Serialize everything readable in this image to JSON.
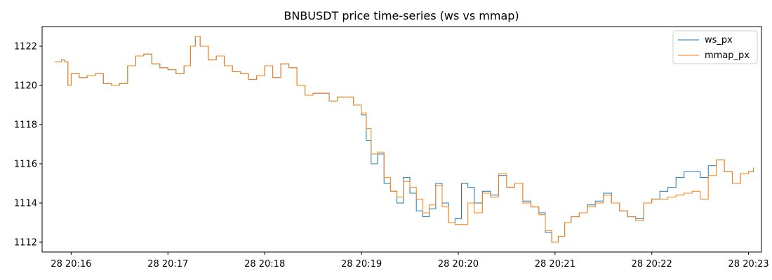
{
  "chart_data": {
    "type": "line",
    "title": "BNBUSDT price time-series (ws vs mmap)",
    "xlabel": "",
    "ylabel": "",
    "xlim": [
      "2024-??-28 20:15:42",
      "2024-??-28 20:23:08"
    ],
    "x_ticks": [
      "28 20:16",
      "28 20:17",
      "28 20:18",
      "28 20:19",
      "28 20:20",
      "28 20:21",
      "28 20:22",
      "28 20:23"
    ],
    "y_ticks": [
      1112,
      1114,
      1116,
      1118,
      1120,
      1122
    ],
    "ylim": [
      1111.5,
      1123.0
    ],
    "grid": false,
    "legend_position": "top-right",
    "series": [
      {
        "name": "ws_px",
        "color": "#1f77b4",
        "points": [
          [
            "20:15:50",
            1121.2
          ],
          [
            "20:15:54",
            1121.3
          ],
          [
            "20:15:56",
            1121.2
          ],
          [
            "20:15:58",
            1120.0
          ],
          [
            "20:16:00",
            1120.6
          ],
          [
            "20:16:05",
            1120.4
          ],
          [
            "20:16:10",
            1120.5
          ],
          [
            "20:16:15",
            1120.6
          ],
          [
            "20:16:20",
            1120.1
          ],
          [
            "20:16:25",
            1120.0
          ],
          [
            "20:16:30",
            1120.1
          ],
          [
            "20:16:35",
            1121.0
          ],
          [
            "20:16:40",
            1121.5
          ],
          [
            "20:16:45",
            1121.6
          ],
          [
            "20:16:50",
            1121.1
          ],
          [
            "20:16:55",
            1120.9
          ],
          [
            "20:17:00",
            1120.8
          ],
          [
            "20:17:05",
            1120.6
          ],
          [
            "20:17:10",
            1121.0
          ],
          [
            "20:17:14",
            1122.0
          ],
          [
            "20:17:17",
            1122.5
          ],
          [
            "20:17:20",
            1122.0
          ],
          [
            "20:17:25",
            1121.3
          ],
          [
            "20:17:30",
            1121.5
          ],
          [
            "20:17:35",
            1121.0
          ],
          [
            "20:17:40",
            1120.7
          ],
          [
            "20:17:45",
            1120.6
          ],
          [
            "20:17:50",
            1120.3
          ],
          [
            "20:17:55",
            1120.5
          ],
          [
            "20:18:00",
            1121.0
          ],
          [
            "20:18:05",
            1120.4
          ],
          [
            "20:18:10",
            1121.1
          ],
          [
            "20:18:15",
            1120.9
          ],
          [
            "20:18:20",
            1120.0
          ],
          [
            "20:18:25",
            1119.5
          ],
          [
            "20:18:30",
            1119.6
          ],
          [
            "20:18:35",
            1119.6
          ],
          [
            "20:18:40",
            1119.2
          ],
          [
            "20:18:45",
            1119.4
          ],
          [
            "20:18:50",
            1119.4
          ],
          [
            "20:18:55",
            1119.0
          ],
          [
            "20:19:00",
            1118.5
          ],
          [
            "20:19:03",
            1117.2
          ],
          [
            "20:19:06",
            1116.0
          ],
          [
            "20:19:10",
            1116.5
          ],
          [
            "20:19:14",
            1115.0
          ],
          [
            "20:19:18",
            1114.6
          ],
          [
            "20:19:22",
            1114.0
          ],
          [
            "20:19:26",
            1115.3
          ],
          [
            "20:19:30",
            1114.5
          ],
          [
            "20:19:34",
            1113.6
          ],
          [
            "20:19:38",
            1113.3
          ],
          [
            "20:19:42",
            1113.7
          ],
          [
            "20:19:46",
            1115.0
          ],
          [
            "20:19:50",
            1114.0
          ],
          [
            "20:19:54",
            1113.0
          ],
          [
            "20:19:58",
            1113.2
          ],
          [
            "20:20:02",
            1115.0
          ],
          [
            "20:20:06",
            1114.8
          ],
          [
            "20:20:10",
            1114.0
          ],
          [
            "20:20:15",
            1114.6
          ],
          [
            "20:20:20",
            1114.4
          ],
          [
            "20:20:25",
            1115.4
          ],
          [
            "20:20:30",
            1114.8
          ],
          [
            "20:20:35",
            1115.0
          ],
          [
            "20:20:40",
            1114.1
          ],
          [
            "20:20:45",
            1113.8
          ],
          [
            "20:20:50",
            1113.5
          ],
          [
            "20:20:54",
            1112.5
          ],
          [
            "20:20:58",
            1112.0
          ],
          [
            "20:21:02",
            1112.3
          ],
          [
            "20:21:06",
            1113.0
          ],
          [
            "20:21:10",
            1113.3
          ],
          [
            "20:21:15",
            1113.5
          ],
          [
            "20:21:20",
            1113.9
          ],
          [
            "20:21:25",
            1114.1
          ],
          [
            "20:21:30",
            1114.5
          ],
          [
            "20:21:35",
            1114.0
          ],
          [
            "20:21:40",
            1113.6
          ],
          [
            "20:21:45",
            1113.3
          ],
          [
            "20:21:50",
            1113.2
          ],
          [
            "20:21:55",
            1114.0
          ],
          [
            "20:22:00",
            1114.2
          ],
          [
            "20:22:05",
            1114.6
          ],
          [
            "20:22:10",
            1114.8
          ],
          [
            "20:22:15",
            1115.3
          ],
          [
            "20:22:20",
            1115.6
          ],
          [
            "20:22:25",
            1115.6
          ],
          [
            "20:22:30",
            1115.3
          ],
          [
            "20:22:35",
            1115.9
          ],
          [
            "20:22:40",
            1116.2
          ],
          [
            "20:22:45",
            1115.6
          ],
          [
            "20:22:50",
            1115.0
          ],
          [
            "20:22:55",
            1115.5
          ],
          [
            "20:23:00",
            1115.6
          ],
          [
            "20:23:03",
            1115.8
          ]
        ]
      },
      {
        "name": "mmap_px",
        "color": "#ff7f0e",
        "points": [
          [
            "20:15:50",
            1121.2
          ],
          [
            "20:15:54",
            1121.3
          ],
          [
            "20:15:56",
            1121.2
          ],
          [
            "20:15:58",
            1120.0
          ],
          [
            "20:16:00",
            1120.6
          ],
          [
            "20:16:05",
            1120.4
          ],
          [
            "20:16:10",
            1120.5
          ],
          [
            "20:16:15",
            1120.6
          ],
          [
            "20:16:20",
            1120.1
          ],
          [
            "20:16:25",
            1120.0
          ],
          [
            "20:16:30",
            1120.1
          ],
          [
            "20:16:35",
            1121.0
          ],
          [
            "20:16:40",
            1121.5
          ],
          [
            "20:16:45",
            1121.6
          ],
          [
            "20:16:50",
            1121.1
          ],
          [
            "20:16:55",
            1120.9
          ],
          [
            "20:17:00",
            1120.8
          ],
          [
            "20:17:05",
            1120.6
          ],
          [
            "20:17:10",
            1121.0
          ],
          [
            "20:17:14",
            1122.0
          ],
          [
            "20:17:17",
            1122.5
          ],
          [
            "20:17:20",
            1122.0
          ],
          [
            "20:17:25",
            1121.3
          ],
          [
            "20:17:30",
            1121.5
          ],
          [
            "20:17:35",
            1121.0
          ],
          [
            "20:17:40",
            1120.7
          ],
          [
            "20:17:45",
            1120.6
          ],
          [
            "20:17:50",
            1120.3
          ],
          [
            "20:17:55",
            1120.5
          ],
          [
            "20:18:00",
            1121.0
          ],
          [
            "20:18:05",
            1120.4
          ],
          [
            "20:18:10",
            1121.1
          ],
          [
            "20:18:15",
            1120.9
          ],
          [
            "20:18:20",
            1120.0
          ],
          [
            "20:18:25",
            1119.5
          ],
          [
            "20:18:30",
            1119.6
          ],
          [
            "20:18:35",
            1119.6
          ],
          [
            "20:18:40",
            1119.2
          ],
          [
            "20:18:45",
            1119.4
          ],
          [
            "20:18:50",
            1119.4
          ],
          [
            "20:18:55",
            1119.0
          ],
          [
            "20:19:00",
            1118.6
          ],
          [
            "20:19:03",
            1117.8
          ],
          [
            "20:19:06",
            1116.5
          ],
          [
            "20:19:10",
            1116.6
          ],
          [
            "20:19:14",
            1115.3
          ],
          [
            "20:19:18",
            1114.6
          ],
          [
            "20:19:22",
            1114.3
          ],
          [
            "20:19:26",
            1115.1
          ],
          [
            "20:19:30",
            1114.8
          ],
          [
            "20:19:34",
            1114.2
          ],
          [
            "20:19:38",
            1113.5
          ],
          [
            "20:19:42",
            1113.9
          ],
          [
            "20:19:46",
            1114.9
          ],
          [
            "20:19:50",
            1113.8
          ],
          [
            "20:19:54",
            1113.0
          ],
          [
            "20:19:58",
            1112.9
          ],
          [
            "20:20:02",
            1112.9
          ],
          [
            "20:20:06",
            1114.0
          ],
          [
            "20:20:10",
            1113.5
          ],
          [
            "20:20:15",
            1114.5
          ],
          [
            "20:20:20",
            1114.3
          ],
          [
            "20:20:25",
            1115.5
          ],
          [
            "20:20:30",
            1114.8
          ],
          [
            "20:20:35",
            1115.0
          ],
          [
            "20:20:40",
            1114.0
          ],
          [
            "20:20:45",
            1113.8
          ],
          [
            "20:20:50",
            1113.4
          ],
          [
            "20:20:54",
            1112.6
          ],
          [
            "20:20:58",
            1112.0
          ],
          [
            "20:21:02",
            1112.3
          ],
          [
            "20:21:06",
            1113.0
          ],
          [
            "20:21:10",
            1113.3
          ],
          [
            "20:21:15",
            1113.5
          ],
          [
            "20:21:20",
            1113.8
          ],
          [
            "20:21:25",
            1114.0
          ],
          [
            "20:21:30",
            1114.4
          ],
          [
            "20:21:35",
            1114.0
          ],
          [
            "20:21:40",
            1113.6
          ],
          [
            "20:21:45",
            1113.3
          ],
          [
            "20:21:50",
            1113.1
          ],
          [
            "20:21:55",
            1114.0
          ],
          [
            "20:22:00",
            1114.2
          ],
          [
            "20:22:05",
            1114.2
          ],
          [
            "20:22:10",
            1114.3
          ],
          [
            "20:22:15",
            1114.4
          ],
          [
            "20:22:20",
            1114.5
          ],
          [
            "20:22:25",
            1114.6
          ],
          [
            "20:22:30",
            1114.2
          ],
          [
            "20:22:35",
            1115.4
          ],
          [
            "20:22:40",
            1116.2
          ],
          [
            "20:22:45",
            1115.6
          ],
          [
            "20:22:50",
            1115.0
          ],
          [
            "20:22:55",
            1115.5
          ],
          [
            "20:23:00",
            1115.6
          ],
          [
            "20:23:03",
            1115.8
          ]
        ]
      }
    ]
  }
}
